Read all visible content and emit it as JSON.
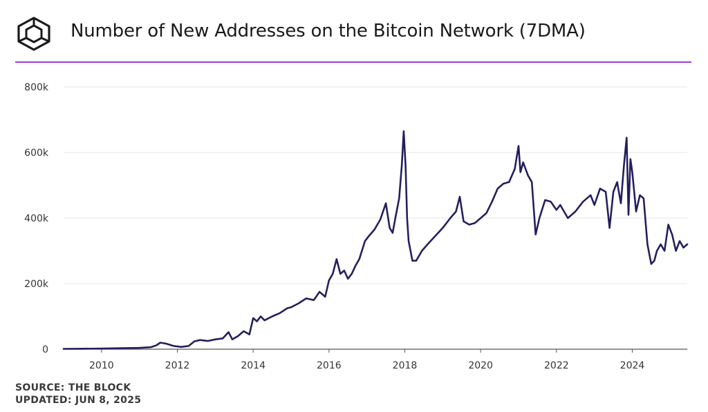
{
  "header": {
    "title": "Number of New Addresses on the Bitcoin Network (7DMA)",
    "logo_icon": "the-block-cube-icon"
  },
  "footer": {
    "source": "SOURCE: THE BLOCK",
    "updated": "UPDATED: JUN 8, 2025"
  },
  "colors": {
    "accent": "#9b3fd9",
    "line": "#241f5e",
    "grid": "#e6e6e6",
    "axis": "#555555",
    "text": "#1a1a1a"
  },
  "chart_data": {
    "type": "line",
    "title": "Number of New Addresses on the Bitcoin Network (7DMA)",
    "xlabel": "",
    "ylabel": "",
    "xlim": [
      2009.0,
      2025.45
    ],
    "ylim": [
      0,
      800000
    ],
    "grid": true,
    "legend": "none",
    "x_ticks": [
      {
        "value": 2010,
        "label": "2010"
      },
      {
        "value": 2012,
        "label": "2012"
      },
      {
        "value": 2014,
        "label": "2014"
      },
      {
        "value": 2016,
        "label": "2016"
      },
      {
        "value": 2018,
        "label": "2018"
      },
      {
        "value": 2020,
        "label": "2020"
      },
      {
        "value": 2022,
        "label": "2022"
      },
      {
        "value": 2024,
        "label": "2024"
      }
    ],
    "y_ticks": [
      {
        "value": 0,
        "label": "0"
      },
      {
        "value": 200000,
        "label": "200k"
      },
      {
        "value": 400000,
        "label": "400k"
      },
      {
        "value": 600000,
        "label": "600k"
      },
      {
        "value": 800000,
        "label": "800k"
      }
    ],
    "series": [
      {
        "name": "New Addresses (7DMA)",
        "x": [
          2009.0,
          2009.5,
          2010.0,
          2010.5,
          2011.0,
          2011.3,
          2011.45,
          2011.55,
          2011.7,
          2011.9,
          2012.1,
          2012.3,
          2012.45,
          2012.6,
          2012.8,
          2013.0,
          2013.2,
          2013.35,
          2013.45,
          2013.6,
          2013.75,
          2013.9,
          2014.0,
          2014.1,
          2014.2,
          2014.3,
          2014.5,
          2014.7,
          2014.9,
          2015.0,
          2015.2,
          2015.4,
          2015.6,
          2015.75,
          2015.9,
          2016.0,
          2016.1,
          2016.2,
          2016.3,
          2016.4,
          2016.5,
          2016.6,
          2016.7,
          2016.8,
          2016.95,
          2017.05,
          2017.2,
          2017.35,
          2017.5,
          2017.6,
          2017.68,
          2017.75,
          2017.85,
          2017.92,
          2017.97,
          2018.02,
          2018.06,
          2018.1,
          2018.2,
          2018.3,
          2018.45,
          2018.6,
          2018.8,
          2019.0,
          2019.2,
          2019.35,
          2019.45,
          2019.55,
          2019.7,
          2019.85,
          2020.0,
          2020.15,
          2020.3,
          2020.45,
          2020.6,
          2020.75,
          2020.9,
          2021.0,
          2021.05,
          2021.12,
          2021.25,
          2021.35,
          2021.45,
          2021.55,
          2021.7,
          2021.85,
          2022.0,
          2022.1,
          2022.3,
          2022.5,
          2022.7,
          2022.9,
          2023.0,
          2023.15,
          2023.3,
          2023.4,
          2023.5,
          2023.6,
          2023.7,
          2023.78,
          2023.85,
          2023.9,
          2023.95,
          2024.0,
          2024.1,
          2024.2,
          2024.3,
          2024.4,
          2024.5,
          2024.58,
          2024.65,
          2024.75,
          2024.85,
          2024.95,
          2025.05,
          2025.15,
          2025.25,
          2025.35,
          2025.45
        ],
        "values": [
          1000,
          1500,
          2000,
          3000,
          4000,
          6000,
          12000,
          20000,
          17000,
          10000,
          7000,
          10000,
          24000,
          28000,
          25000,
          30000,
          33000,
          52000,
          30000,
          40000,
          55000,
          45000,
          95000,
          85000,
          100000,
          88000,
          100000,
          110000,
          125000,
          128000,
          140000,
          155000,
          150000,
          175000,
          160000,
          210000,
          230000,
          275000,
          230000,
          240000,
          215000,
          230000,
          255000,
          275000,
          330000,
          345000,
          365000,
          395000,
          445000,
          370000,
          355000,
          400000,
          460000,
          560000,
          665000,
          560000,
          400000,
          330000,
          270000,
          270000,
          300000,
          320000,
          345000,
          370000,
          400000,
          420000,
          465000,
          390000,
          380000,
          385000,
          400000,
          415000,
          450000,
          490000,
          505000,
          510000,
          550000,
          620000,
          540000,
          570000,
          530000,
          510000,
          350000,
          400000,
          455000,
          450000,
          425000,
          440000,
          400000,
          420000,
          450000,
          470000,
          440000,
          490000,
          480000,
          370000,
          480000,
          510000,
          445000,
          560000,
          645000,
          410000,
          580000,
          540000,
          420000,
          470000,
          460000,
          320000,
          260000,
          270000,
          300000,
          320000,
          300000,
          380000,
          350000,
          300000,
          330000,
          310000,
          320000
        ]
      }
    ]
  }
}
